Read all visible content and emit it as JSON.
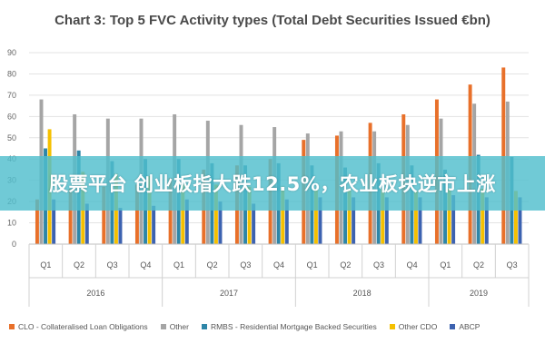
{
  "banner": {
    "text": "股票平台 创业板指大跌12.5%，农业板块逆市上涨"
  },
  "chart_data": {
    "type": "bar",
    "title": "Chart 3: Top 5 FVC Activity types (Total Debt Securities Issued €bn)",
    "xlabel": "",
    "ylabel": "",
    "ylim": [
      0,
      90
    ],
    "yticks": [
      0,
      10,
      20,
      30,
      40,
      50,
      60,
      70,
      80,
      90
    ],
    "grid": true,
    "legend_position": "bottom",
    "categories": [
      "Q1",
      "Q2",
      "Q3",
      "Q4",
      "Q1",
      "Q2",
      "Q3",
      "Q4",
      "Q1",
      "Q2",
      "Q3",
      "Q4",
      "Q1",
      "Q2",
      "Q3"
    ],
    "years": [
      {
        "label": "2016",
        "start": 0,
        "end": 3
      },
      {
        "label": "2017",
        "start": 4,
        "end": 7
      },
      {
        "label": "2018",
        "start": 8,
        "end": 11
      },
      {
        "label": "2019",
        "start": 12,
        "end": 14
      }
    ],
    "series": [
      {
        "name": "CLO - Collateralised Loan Obligations",
        "color": "#e8702a",
        "values": [
          21,
          26,
          27,
          28,
          31,
          35,
          37,
          40,
          49,
          51,
          57,
          61,
          68,
          75,
          83
        ]
      },
      {
        "name": "Other",
        "color": "#a5a5a5",
        "values": [
          68,
          61,
          59,
          59,
          61,
          58,
          56,
          55,
          52,
          53,
          53,
          56,
          59,
          66,
          67
        ]
      },
      {
        "name": "RMBS - Residential Mortgage Backed Securities",
        "color": "#2e86a8",
        "values": [
          45,
          44,
          39,
          40,
          40,
          38,
          37,
          38,
          37,
          36,
          38,
          37,
          35,
          42,
          41
        ]
      },
      {
        "name": "Other CDO",
        "color": "#f5c000",
        "values": [
          54,
          34,
          33,
          32,
          28,
          28,
          27,
          27,
          26,
          26,
          26,
          25,
          26,
          26,
          25
        ]
      },
      {
        "name": "ABCP",
        "color": "#3c62b0",
        "values": [
          21,
          19,
          17,
          18,
          21,
          20,
          19,
          21,
          22,
          22,
          22,
          22,
          23,
          22,
          22
        ]
      }
    ]
  }
}
